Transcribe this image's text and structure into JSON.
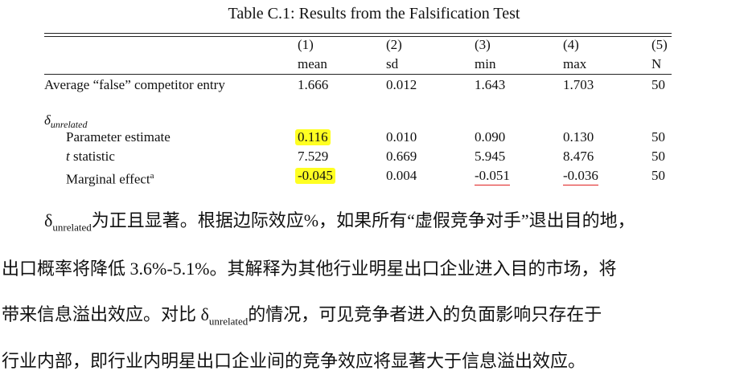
{
  "title": "Table C.1: Results from the Falsification Test",
  "table": {
    "header_numbers": [
      "(1)",
      "(2)",
      "(3)",
      "(4)",
      "(5)"
    ],
    "header_labels": [
      "mean",
      "sd",
      "min",
      "max",
      "N"
    ],
    "row_main": {
      "label": "Average “false” competitor entry",
      "cells": [
        "1.666",
        "0.012",
        "1.643",
        "1.703",
        "50"
      ]
    },
    "section": {
      "symbol": "δ",
      "subscript": "unrelated"
    },
    "row_param": {
      "label": "Parameter estimate",
      "cells": [
        "0.116",
        "0.010",
        "0.090",
        "0.130",
        "50"
      ]
    },
    "row_t": {
      "variable": "t",
      "label": "statistic",
      "cells": [
        "7.529",
        "0.669",
        "5.945",
        "8.476",
        "50"
      ]
    },
    "row_marginal": {
      "label": "Marginal effect",
      "note": "a",
      "cells": [
        "-0.045",
        "0.004",
        "-0.051",
        "-0.036",
        "50"
      ]
    }
  },
  "paragraph": {
    "line1": {
      "symbol": "δ",
      "subscript": "unrelated",
      "text": "为正且显著。根据边际效应%，如果所有“虚假竞争对手”退出目的地，"
    },
    "line2": "出口概率将降低 3.6%-5.1%。其解释为其他行业明星出口企业进入目的市场，将",
    "line3": {
      "before": "带来信息溢出效应。对比 ",
      "symbol": "δ",
      "subscript": "unrelated",
      "after": "的情况，可见竞争者进入的负面影响只存在于"
    },
    "line4": "行业内部，即行业内明星出口企业间的竞争效应将显著大于信息溢出效应。"
  }
}
